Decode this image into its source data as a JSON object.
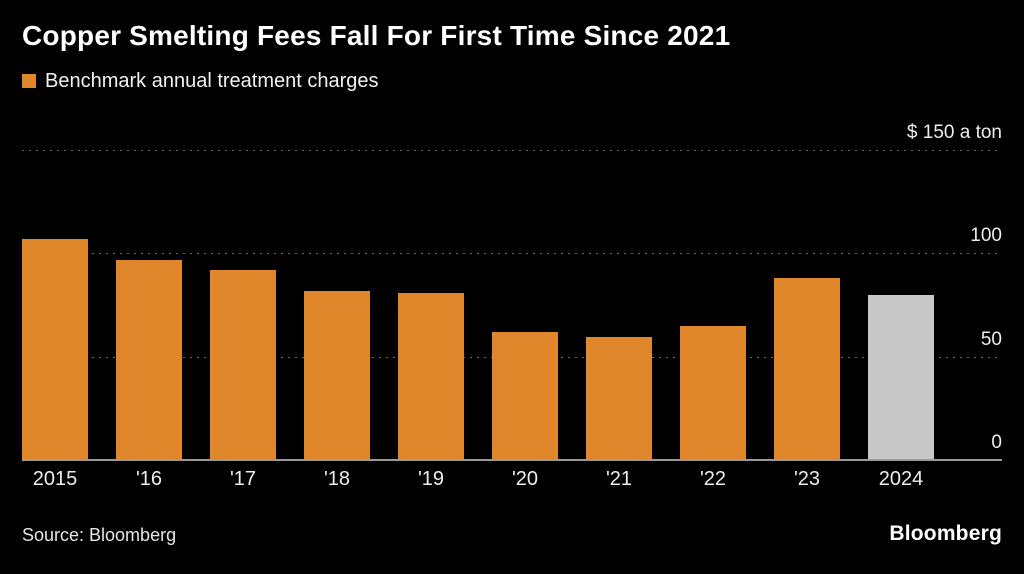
{
  "title": "Copper Smelting Fees Fall For First Time Since 2021",
  "legend": {
    "label": "Benchmark annual treatment charges",
    "swatch_color": "#E0862B"
  },
  "source": "Source: Bloomberg",
  "brand": "Bloomberg",
  "colors": {
    "background": "#000000",
    "bar_orange": "#E0862B",
    "bar_gray": "#C8C8C8",
    "gridline": "#6e6e6e",
    "axis_line": "#9a9a9a",
    "text": "#ffffff"
  },
  "chart_data": {
    "type": "bar",
    "title": "Copper Smelting Fees Fall For First Time Since 2021",
    "legend": "Benchmark annual treatment charges",
    "categories": [
      "2015",
      "'16",
      "'17",
      "'18",
      "'19",
      "'20",
      "'21",
      "'22",
      "'23",
      "2024"
    ],
    "values": [
      107,
      97,
      92,
      82,
      81,
      62,
      59.5,
      65,
      88,
      80
    ],
    "ylabel": "$ a ton",
    "ylim": [
      0,
      150
    ],
    "grid": "dotted horizontal",
    "legend_position": "top-left",
    "bar_color": "#E0862B",
    "highlight": {
      "index": 9,
      "color": "#C8C8C8"
    },
    "ticks": [
      {
        "value": 150,
        "label": "$ 150 a ton",
        "line": "dotted"
      },
      {
        "value": 100,
        "label": "100",
        "line": "dotted"
      },
      {
        "value": 50,
        "label": "50",
        "line": "dotted"
      },
      {
        "value": 0,
        "label": "0",
        "line": "solid"
      }
    ]
  }
}
